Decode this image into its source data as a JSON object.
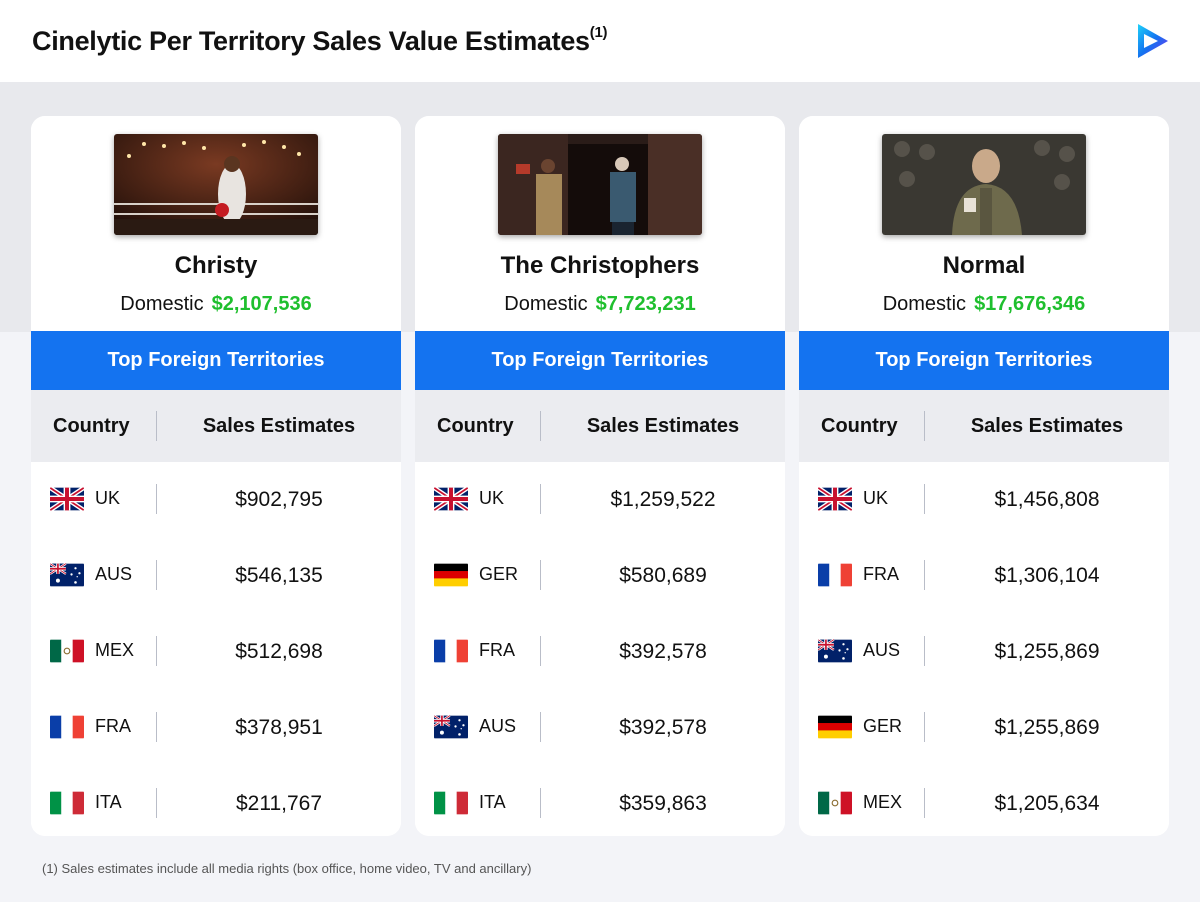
{
  "header": {
    "title": "Cinelytic Per Territory Sales Value Estimates",
    "title_sup": "(1)",
    "logo_icon": "play-logo-icon"
  },
  "colors": {
    "accent_blue": "#1473f0",
    "domestic_green": "#1fbf2e"
  },
  "column_labels": {
    "foreign_header": "Top Foreign Territories",
    "country": "Country",
    "sales": "Sales Estimates"
  },
  "domestic_label": "Domestic",
  "cards": [
    {
      "title": "Christy",
      "domestic_value": "$2,107,536",
      "rows": [
        {
          "code": "UK",
          "flag": "uk-flag-icon",
          "value": "$902,795"
        },
        {
          "code": "AUS",
          "flag": "aus-flag-icon",
          "value": "$546,135"
        },
        {
          "code": "MEX",
          "flag": "mex-flag-icon",
          "value": "$512,698"
        },
        {
          "code": "FRA",
          "flag": "fra-flag-icon",
          "value": "$378,951"
        },
        {
          "code": "ITA",
          "flag": "ita-flag-icon",
          "value": "$211,767"
        }
      ]
    },
    {
      "title": "The Christophers",
      "domestic_value": "$7,723,231",
      "rows": [
        {
          "code": "UK",
          "flag": "uk-flag-icon",
          "value": "$1,259,522"
        },
        {
          "code": "GER",
          "flag": "ger-flag-icon",
          "value": "$580,689"
        },
        {
          "code": "FRA",
          "flag": "fra-flag-icon",
          "value": "$392,578"
        },
        {
          "code": "AUS",
          "flag": "aus-flag-icon",
          "value": "$392,578"
        },
        {
          "code": "ITA",
          "flag": "ita-flag-icon",
          "value": "$359,863"
        }
      ]
    },
    {
      "title": "Normal",
      "domestic_value": "$17,676,346",
      "rows": [
        {
          "code": "UK",
          "flag": "uk-flag-icon",
          "value": "$1,456,808"
        },
        {
          "code": "FRA",
          "flag": "fra-flag-icon",
          "value": "$1,306,104"
        },
        {
          "code": "AUS",
          "flag": "aus-flag-icon",
          "value": "$1,255,869"
        },
        {
          "code": "GER",
          "flag": "ger-flag-icon",
          "value": "$1,255,869"
        },
        {
          "code": "MEX",
          "flag": "mex-flag-icon",
          "value": "$1,205,634"
        }
      ]
    }
  ],
  "footnote": "(1) Sales estimates include all media rights (box office, home video, TV and ancillary)"
}
